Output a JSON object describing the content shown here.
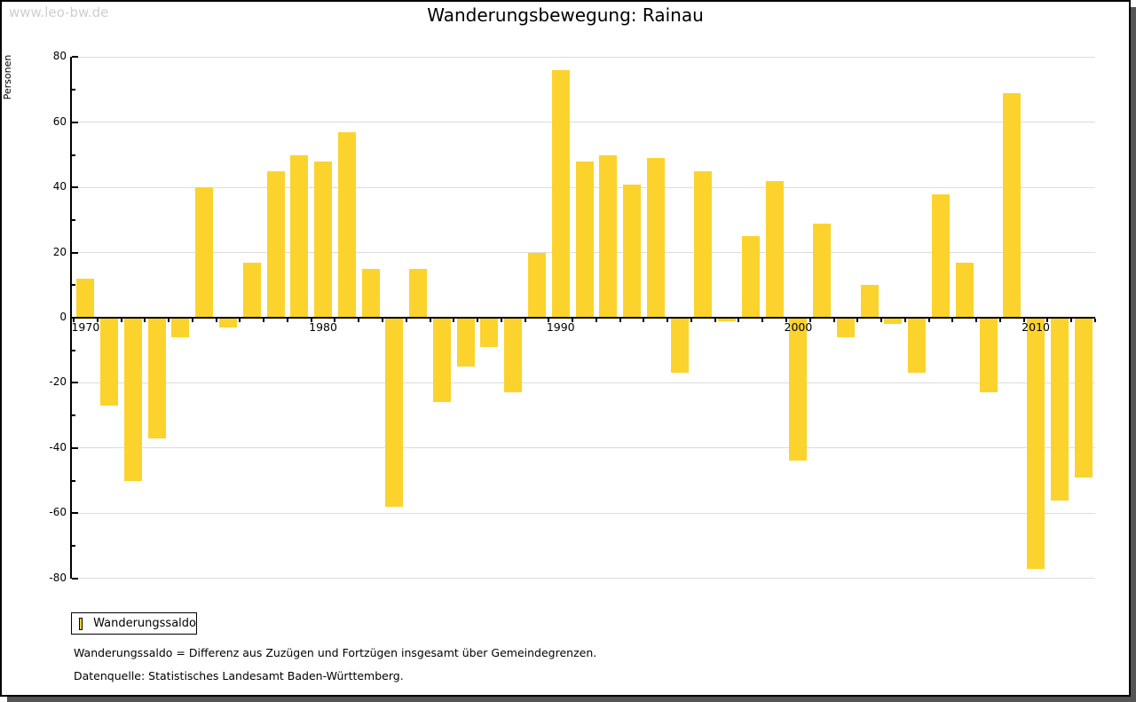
{
  "watermark": "www.leo-bw.de",
  "title": "Wanderungsbewegung: Rainau",
  "legend": {
    "label": "Wanderungssaldo"
  },
  "footnotes": [
    "Wanderungssaldo = Differenz aus Zuzügen und Fortzügen insgesamt über Gemeindegrenzen.",
    "Datenquelle: Statistisches Landesamt Baden-Württemberg."
  ],
  "colors": {
    "bar": "#FCD32D",
    "grid": "#DCDCDC",
    "axis": "#000000",
    "watermark": "#CFCFCF",
    "shadow": "#555555"
  },
  "chart_data": {
    "type": "bar",
    "title": "Wanderungsbewegung: Rainau",
    "xlabel": "",
    "ylabel": "Personen",
    "series_name": "Wanderungssaldo",
    "years": [
      1970,
      1971,
      1972,
      1973,
      1974,
      1975,
      1976,
      1977,
      1978,
      1979,
      1980,
      1981,
      1982,
      1983,
      1984,
      1985,
      1986,
      1987,
      1988,
      1989,
      1990,
      1991,
      1992,
      1993,
      1994,
      1995,
      1996,
      1997,
      1998,
      1999,
      2000,
      2001,
      2002,
      2003,
      2004,
      2005,
      2006,
      2007,
      2008,
      2009,
      2010,
      2011,
      2012
    ],
    "values": [
      12,
      -27,
      -50,
      -37,
      -6,
      40,
      -3,
      17,
      45,
      50,
      48,
      57,
      15,
      -58,
      15,
      -26,
      -15,
      -9,
      -23,
      20,
      76,
      48,
      50,
      41,
      49,
      -17,
      45,
      -1,
      25,
      42,
      -44,
      29,
      -6,
      10,
      -2,
      -17,
      38,
      17,
      -23,
      69,
      -77,
      -56,
      -49
    ],
    "ylim": [
      -80,
      80
    ],
    "y_ticks": [
      80,
      60,
      40,
      20,
      0,
      -20,
      -40,
      -60,
      -80
    ],
    "y_minor_tick_step": 10,
    "x_tick_labels": [
      "1970",
      "1980",
      "1990",
      "2000",
      "2010"
    ],
    "grid": true,
    "legend_position": "bottom-left"
  }
}
